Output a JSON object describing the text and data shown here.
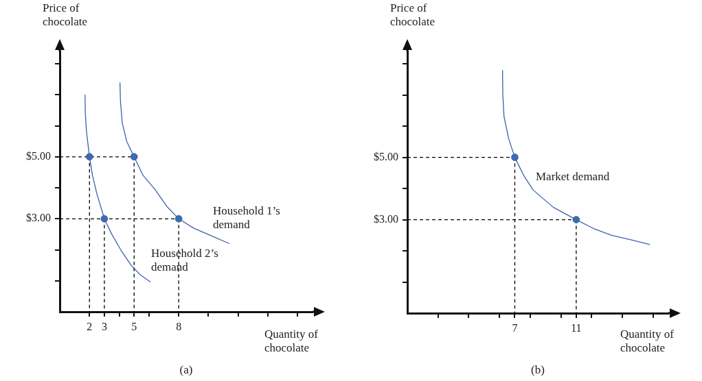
{
  "chart_data": [
    {
      "type": "line",
      "ylabel": "Price of chocolate",
      "xlabel": "Quantity of chocolate",
      "grid": false,
      "legend": false,
      "xlim": [
        0,
        17
      ],
      "ylim": [
        0,
        8.4
      ],
      "xticks": [
        2,
        3,
        {
          "value": 4,
          "label": null
        },
        5,
        {
          "value": 6,
          "label": null
        },
        8,
        {
          "value": 10,
          "label": null
        },
        {
          "value": 12,
          "label": null
        },
        {
          "value": 14,
          "label": null
        },
        {
          "value": 16,
          "label": null
        }
      ],
      "yticks": [
        {
          "value": 1,
          "label": null
        },
        {
          "value": 2,
          "label": null
        },
        {
          "value": 3,
          "label": "$3.00"
        },
        {
          "value": 4,
          "label": null
        },
        {
          "value": 5,
          "label": "$5.00"
        },
        {
          "value": 6,
          "label": null
        },
        {
          "value": 7,
          "label": null
        },
        {
          "value": 8,
          "label": null
        }
      ],
      "series": [
        {
          "type": "line",
          "x": [
            0,
            5
          ],
          "values": [
            5,
            5
          ],
          "color": "#000000",
          "line_style": "dashed",
          "marker": "none"
        },
        {
          "type": "line",
          "x": [
            0,
            8
          ],
          "values": [
            3,
            3
          ],
          "color": "#000000",
          "line_style": "dashed",
          "marker": "none"
        },
        {
          "type": "line",
          "x": [
            2,
            2
          ],
          "values": [
            5,
            0
          ],
          "color": "#000000",
          "line_style": "dashed",
          "marker": "none"
        },
        {
          "type": "line",
          "x": [
            3,
            3
          ],
          "values": [
            3,
            0
          ],
          "color": "#000000",
          "line_style": "dashed",
          "marker": "none"
        },
        {
          "type": "line",
          "x": [
            5,
            5
          ],
          "values": [
            5,
            0
          ],
          "color": "#000000",
          "line_style": "dashed",
          "marker": "none"
        },
        {
          "type": "line",
          "x": [
            8,
            8
          ],
          "values": [
            3,
            0
          ],
          "color": "#000000",
          "line_style": "dashed",
          "marker": "none"
        },
        {
          "type": "line",
          "x": [
            1.7,
            1.72,
            1.8,
            2,
            2.2,
            2.5,
            3,
            3.5,
            4.1,
            4.8,
            5.4,
            6.1
          ],
          "values": [
            7.0,
            6.4,
            5.8,
            5,
            4.4,
            3.8,
            3,
            2.5,
            2.0,
            1.5,
            1.2,
            0.96
          ],
          "color": "#3a63ad",
          "line_style": "solid",
          "marker": "none"
        },
        {
          "type": "line",
          "x": [
            4.05,
            4.08,
            4.2,
            4.5,
            5,
            5.6,
            6.4,
            7.2,
            8,
            9,
            10.2,
            11.4
          ],
          "values": [
            7.4,
            6.8,
            6.1,
            5.5,
            5,
            4.4,
            3.95,
            3.4,
            3,
            2.7,
            2.45,
            2.2
          ],
          "color": "#3a63ad",
          "line_style": "solid",
          "marker": "none"
        },
        {
          "type": "scatter",
          "x": [
            2,
            5,
            3,
            8
          ],
          "values": [
            5,
            5,
            3,
            3
          ],
          "color": "#3d6bb3",
          "marker": "circle"
        }
      ],
      "annotations": [
        "Household 1’s demand",
        "Household 2’s demand",
        "(a)"
      ]
    },
    {
      "type": "line",
      "ylabel": "Price of chocolate",
      "xlabel": "Quantity of chocolate",
      "grid": false,
      "legend": false,
      "xlim": [
        0,
        17
      ],
      "ylim": [
        0,
        8.4
      ],
      "xticks": [
        {
          "value": 2,
          "label": null
        },
        {
          "value": 4,
          "label": null
        },
        {
          "value": 6,
          "label": null
        },
        7,
        {
          "value": 8,
          "label": null
        },
        {
          "value": 10,
          "label": null
        },
        11,
        {
          "value": 12,
          "label": null
        },
        {
          "value": 14,
          "label": null
        },
        {
          "value": 16,
          "label": null
        }
      ],
      "yticks": [
        {
          "value": 1,
          "label": null
        },
        {
          "value": 2,
          "label": null
        },
        {
          "value": 3,
          "label": "$3.00"
        },
        {
          "value": 4,
          "label": null
        },
        {
          "value": 5,
          "label": "$5.00"
        },
        {
          "value": 6,
          "label": null
        },
        {
          "value": 7,
          "label": null
        },
        {
          "value": 8,
          "label": null
        }
      ],
      "series": [
        {
          "type": "line",
          "x": [
            0,
            7
          ],
          "values": [
            5,
            5
          ],
          "color": "#000000",
          "line_style": "dashed",
          "marker": "none"
        },
        {
          "type": "line",
          "x": [
            0,
            11
          ],
          "values": [
            3,
            3
          ],
          "color": "#000000",
          "line_style": "dashed",
          "marker": "none"
        },
        {
          "type": "line",
          "x": [
            7,
            7
          ],
          "values": [
            5,
            0
          ],
          "color": "#000000",
          "line_style": "dashed",
          "marker": "none"
        },
        {
          "type": "line",
          "x": [
            11,
            11
          ],
          "values": [
            3,
            0
          ],
          "color": "#000000",
          "line_style": "dashed",
          "marker": "none"
        },
        {
          "type": "line",
          "x": [
            6.2,
            6.22,
            6.3,
            6.6,
            7,
            7.6,
            8.2,
            9.5,
            11,
            12.2,
            13.3,
            14.6,
            15.8
          ],
          "values": [
            7.8,
            7.0,
            6.3,
            5.6,
            5,
            4.4,
            3.95,
            3.4,
            3,
            2.7,
            2.5,
            2.35,
            2.2
          ],
          "color": "#3a63ad",
          "line_style": "solid",
          "marker": "none"
        },
        {
          "type": "scatter",
          "x": [
            7,
            11
          ],
          "values": [
            5,
            3
          ],
          "color": "#3d6bb3",
          "marker": "circle"
        }
      ],
      "annotations": [
        "Market demand",
        "(b)"
      ]
    }
  ]
}
